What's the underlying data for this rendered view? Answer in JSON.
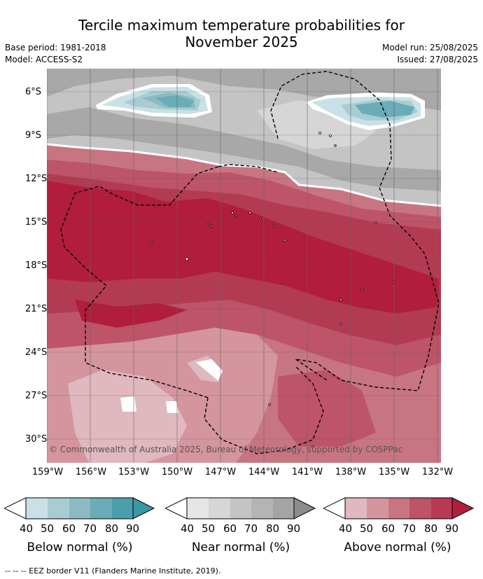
{
  "title_line1": "Tercile maximum temperature probabilities for",
  "title_line2": "November 2025",
  "meta": {
    "base_period": "Base period: 1981-2018",
    "model": "Model: ACCESS-S2",
    "model_run": "Model run: 25/08/2025",
    "issued": "Issued: 27/08/2025"
  },
  "latitude_labels": [
    "6°S",
    "9°S",
    "12°S",
    "15°S",
    "18°S",
    "21°S",
    "24°S",
    "27°S",
    "30°S"
  ],
  "longitude_labels": [
    "159°W",
    "156°W",
    "153°W",
    "150°W",
    "147°W",
    "144°W",
    "141°W",
    "138°W",
    "135°W",
    "132°W"
  ],
  "copyright": "© Commonwealth of Australia 2025, Bureau of Meteorology, supported by COSPPac",
  "legends": [
    {
      "title": "Below normal (%)",
      "ticks": [
        "40",
        "50",
        "60",
        "70",
        "80",
        "90"
      ],
      "colors": [
        "#ffffff",
        "#c9e1e6",
        "#a9ccd3",
        "#8bbac4",
        "#6aacb7",
        "#4b9fad"
      ]
    },
    {
      "title": "Near normal (%)",
      "ticks": [
        "40",
        "50",
        "60",
        "70",
        "80",
        "90"
      ],
      "colors": [
        "#ffffff",
        "#e6e6e6",
        "#d6d6d6",
        "#c4c4c4",
        "#b4b4b4",
        "#a4a4a4"
      ]
    },
    {
      "title": "Above normal (%)",
      "ticks": [
        "40",
        "50",
        "60",
        "70",
        "80",
        "90"
      ],
      "colors": [
        "#ffffff",
        "#e0b8bf",
        "#d4959f",
        "#c87582",
        "#bd5468",
        "#b73a52"
      ]
    }
  ],
  "footer": "-- -- -- EEZ border V11 (Flanders Marine Institute, 2019).",
  "colors": {
    "above_50": "#e0b8bf",
    "above_60": "#d4959f",
    "above_70": "#c87582",
    "above_80": "#bd5468",
    "above_90": "#b23b52",
    "above_strong": "#b11d3b",
    "near_50": "#e6e6e6",
    "near_60": "#d6d6d6",
    "near_70": "#c4c4c4",
    "near_80": "#a8a8a8",
    "below_50": "#c9e1e6",
    "below_60": "#a9ccd3",
    "below_70": "#8bbac4",
    "below_80": "#6aacb7"
  }
}
